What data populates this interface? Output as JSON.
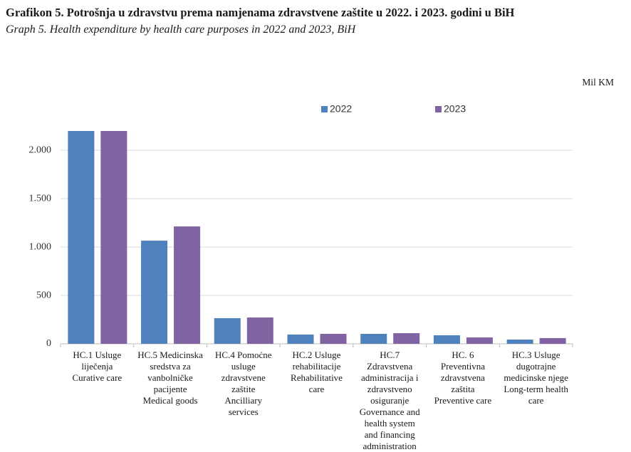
{
  "chart_data": {
    "type": "bar",
    "title": "Grafikon 5.  Potrošnja u zdravstvu prema namjenama zdravstvene zaštite u 2022. i 2023. godini u BiH",
    "subtitle": "Graph 5.  Health expenditure by health care purposes in 2022 and 2023, BiH",
    "y_label": "Mil KM",
    "categories": [
      "HC.1  Usluge\nliječenja\nCurative care",
      "HC.5  Medicinska\nsredstva za\nvanbolničke\npacijente\nMedical goods",
      "HC.4  Pomoćne\nusluge\nzdravstvene\nzaštite\nAncilliary\nservices",
      "HC.2  Usluge\nrehabilitacije\nRehabilitative\ncare",
      "HC.7\nZdravstvena\nadministracija i\nzdravstveno\nosiguranje\nGovernance and\nhealth system\nand financing\nadministration",
      "HC. 6\nPreventivna\nzdravstvena\nzaštita\nPreventive care",
      "HC.3  Usluge\ndugotrajne\nmedicinske njege\nLong-term health\ncare"
    ],
    "series": [
      {
        "name": "2022",
        "color": "#4f81bd",
        "values": [
          2200,
          1066,
          265,
          96,
          103,
          88,
          44
        ]
      },
      {
        "name": "2023",
        "color": "#8064a2",
        "values": [
          2200,
          1213,
          272,
          103,
          110,
          66,
          59
        ]
      }
    ],
    "ylim": [
      0,
      2200
    ],
    "yticks": [
      0,
      500,
      {
        "value": 1000,
        "label": "1.000"
      },
      {
        "value": 1500,
        "label": "1.500"
      },
      {
        "value": 2000,
        "label": "2.000"
      }
    ],
    "grid": true,
    "legend": "top"
  }
}
